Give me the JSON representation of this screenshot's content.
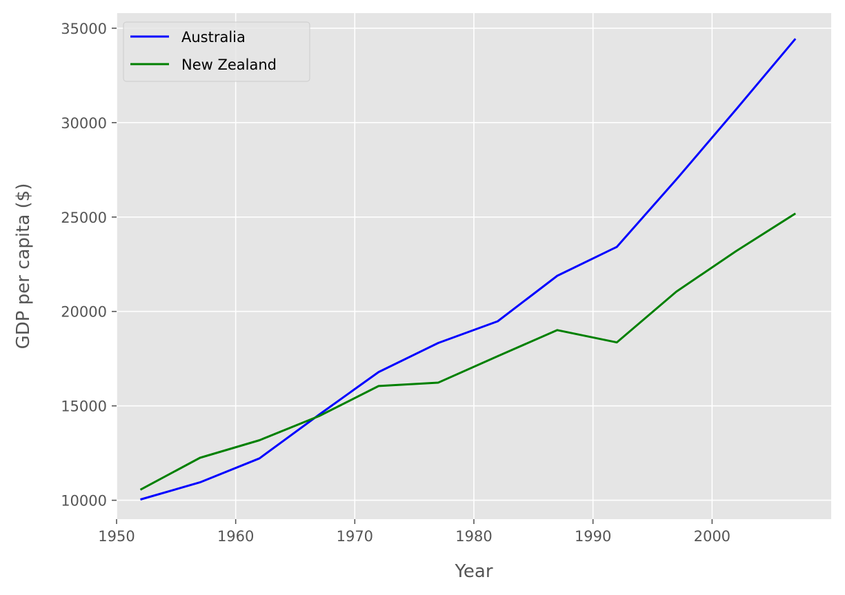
{
  "chart_data": {
    "type": "line",
    "title": "",
    "xlabel": "Year",
    "ylabel": "GDP per capita ($)",
    "xlim": [
      1950,
      2010
    ],
    "ylim": [
      9000,
      35800
    ],
    "xticks": [
      1950,
      1960,
      1970,
      1980,
      1990,
      2000
    ],
    "yticks": [
      10000,
      15000,
      20000,
      25000,
      30000,
      35000
    ],
    "grid": true,
    "legend_position": "top-left",
    "x": [
      1952,
      1957,
      1962,
      1967,
      1972,
      1977,
      1982,
      1987,
      1992,
      1997,
      2002,
      2007
    ],
    "series": [
      {
        "name": "Australia",
        "color": "#0000ff",
        "values": [
          10040,
          10950,
          12220,
          14530,
          16790,
          18330,
          19480,
          21890,
          23420,
          26990,
          30690,
          34440
        ]
      },
      {
        "name": "New Zealand",
        "color": "#008000",
        "values": [
          10560,
          12250,
          13180,
          14460,
          16050,
          16230,
          17630,
          19010,
          18360,
          21050,
          23190,
          25190
        ]
      }
    ],
    "colors": {
      "plot_background": "#e5e5e5",
      "grid": "#ffffff",
      "tick_text": "#555555"
    }
  }
}
